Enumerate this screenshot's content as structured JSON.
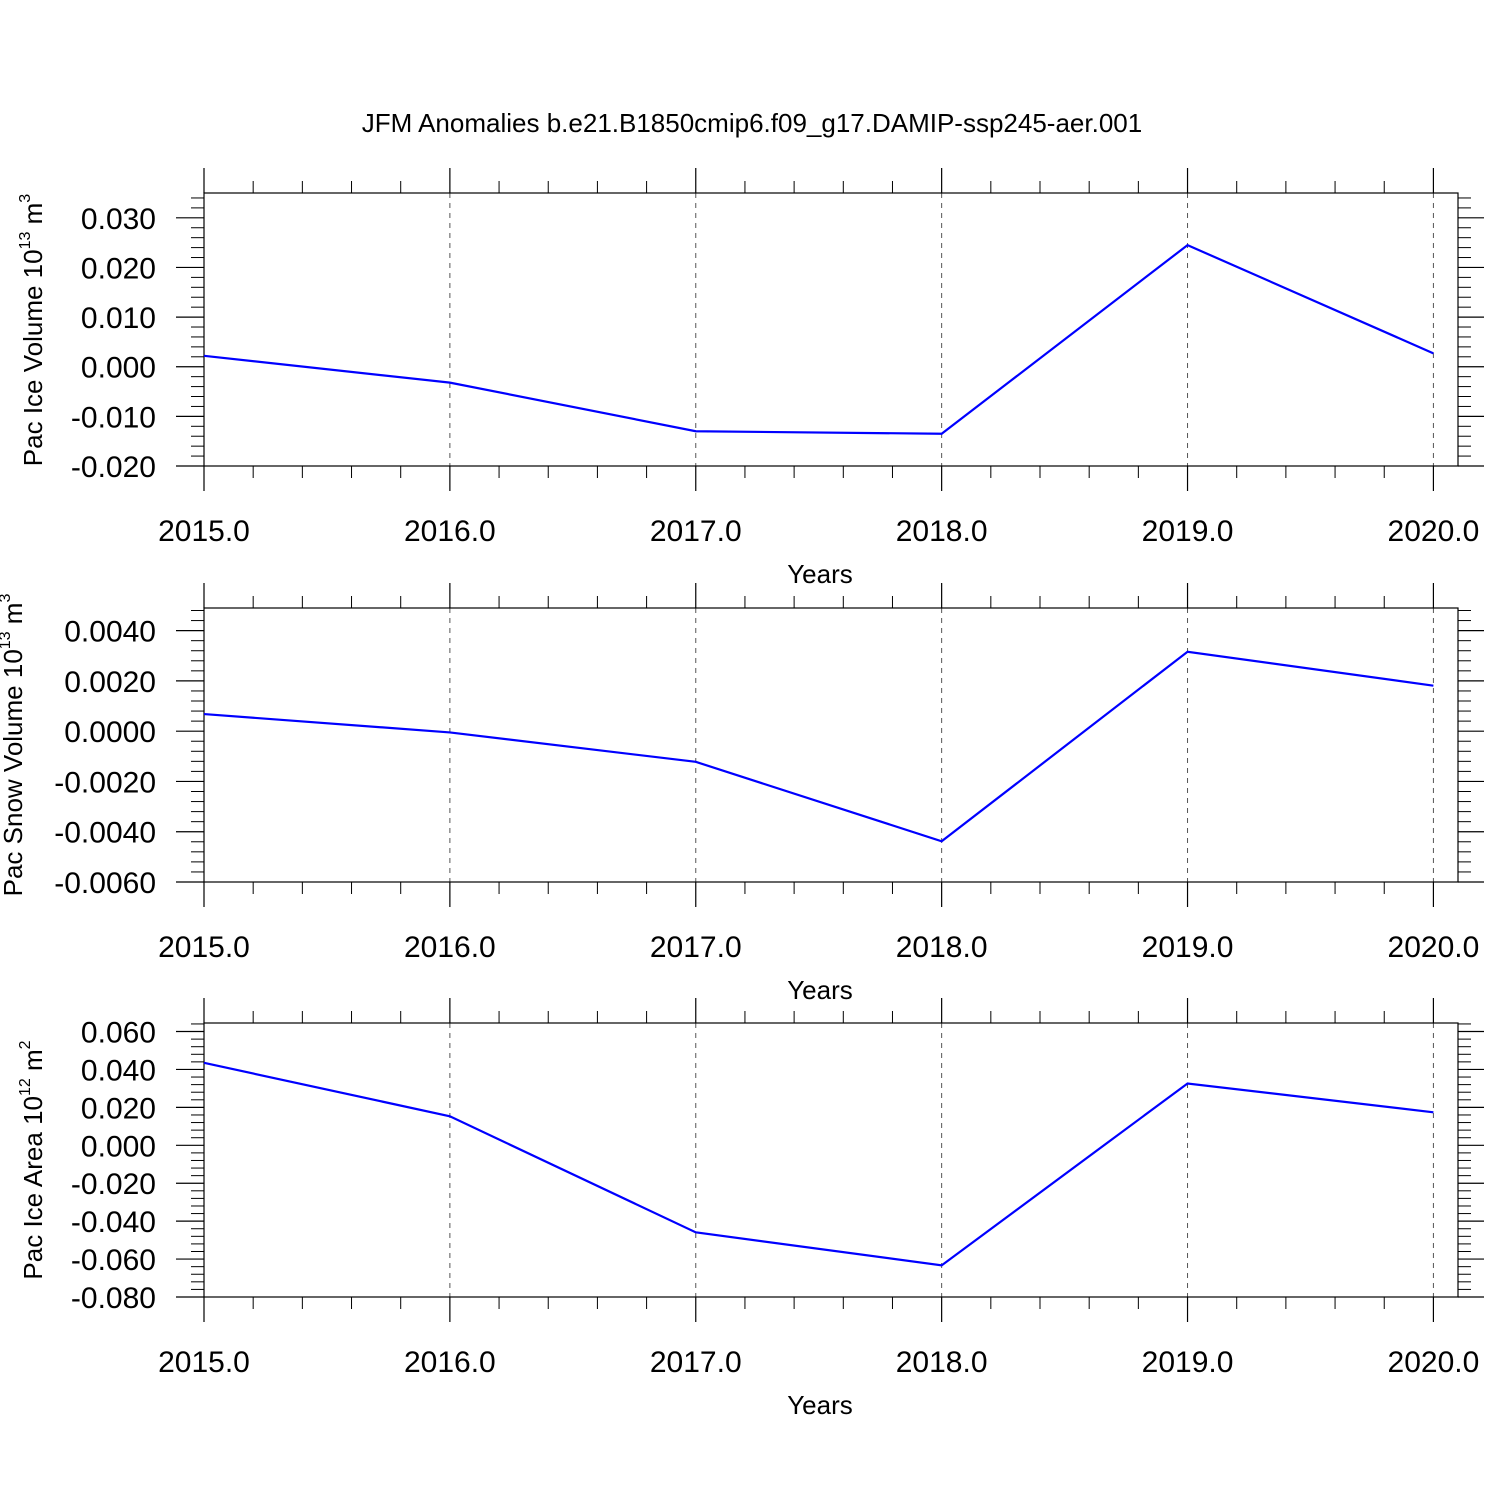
{
  "figure": {
    "title": "JFM Anomalies b.e21.B1850cmip6.f09_g17.DAMIP-ssp245-aer.001"
  },
  "chart_data": [
    {
      "type": "line",
      "ylabel": {
        "main": "Pac Ice Volume 10",
        "exp": "13",
        "tail": " m",
        "unit_exp": "3"
      },
      "xlabel": "Years",
      "x": [
        2015,
        2016,
        2017,
        2018,
        2019,
        2020
      ],
      "xlim": [
        2015,
        2020.1
      ],
      "xticks": [
        "2015.0",
        "2016.0",
        "2017.0",
        "2018.0",
        "2019.0",
        "2020.0"
      ],
      "ylim": [
        -0.02,
        0.035
      ],
      "yticks": [
        -0.02,
        -0.01,
        0.0,
        0.01,
        0.02,
        0.03
      ],
      "yticklabels": [
        "-0.020",
        "-0.010",
        "0.000",
        "0.010",
        "0.020",
        "0.030"
      ],
      "yminor": 0.002,
      "grid": "x-dashed",
      "line_color": "#0000ff",
      "values": [
        0.0022,
        -0.0032,
        -0.013,
        -0.0135,
        0.0245,
        0.0027
      ]
    },
    {
      "type": "line",
      "ylabel": {
        "main": "Pac Snow Volume 10",
        "exp": "13",
        "tail": " m",
        "unit_exp": "3"
      },
      "xlabel": "Years",
      "x": [
        2015,
        2016,
        2017,
        2018,
        2019,
        2020
      ],
      "xlim": [
        2015,
        2020.1
      ],
      "xticks": [
        "2015.0",
        "2016.0",
        "2017.0",
        "2018.0",
        "2019.0",
        "2020.0"
      ],
      "ylim": [
        -0.006,
        0.0049
      ],
      "yticks": [
        -0.006,
        -0.004,
        -0.002,
        0.0,
        0.002,
        0.004
      ],
      "yticklabels": [
        "-0.0060",
        "-0.0040",
        "-0.0020",
        "0.0000",
        "0.0020",
        "0.0040"
      ],
      "yminor": 0.0004,
      "grid": "x-dashed",
      "line_color": "#0000ff",
      "values": [
        0.00068,
        -5e-05,
        -0.00122,
        -0.00438,
        0.00316,
        0.00181
      ]
    },
    {
      "type": "line",
      "ylabel": {
        "main": "Pac Ice Area 10",
        "exp": "12",
        "tail": " m",
        "unit_exp": "2"
      },
      "xlabel": "Years",
      "x": [
        2015,
        2016,
        2017,
        2018,
        2019,
        2020
      ],
      "xlim": [
        2015,
        2020.1
      ],
      "xticks": [
        "2015.0",
        "2016.0",
        "2017.0",
        "2018.0",
        "2019.0",
        "2020.0"
      ],
      "ylim": [
        -0.08,
        0.0645
      ],
      "yticks": [
        -0.08,
        -0.06,
        -0.04,
        -0.02,
        0.0,
        0.02,
        0.04,
        0.06
      ],
      "yticklabels": [
        "-0.080",
        "-0.060",
        "-0.040",
        "-0.020",
        "0.000",
        "0.020",
        "0.040",
        "0.060"
      ],
      "yminor": 0.004,
      "grid": "x-dashed",
      "line_color": "#0000ff",
      "values": [
        0.0435,
        0.0153,
        -0.0459,
        -0.0633,
        0.0326,
        0.0174
      ]
    }
  ]
}
